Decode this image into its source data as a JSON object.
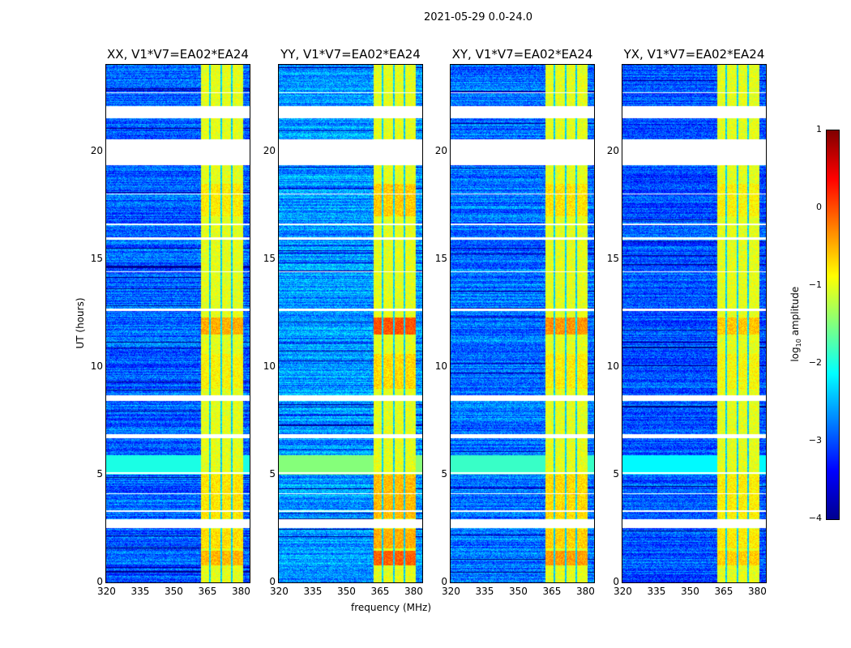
{
  "chart_data": {
    "type": "heatmap",
    "title": "2021-05-29 0.0-24.0",
    "xlabel": "frequency (MHz)",
    "ylabel": "UT (hours)",
    "xlim": [
      320,
      384
    ],
    "ylim": [
      0,
      24
    ],
    "xticks": [
      "320",
      "335",
      "350",
      "365",
      "380"
    ],
    "xtick_values": [
      320,
      335,
      350,
      365,
      380
    ],
    "yticks": [
      "0",
      "5",
      "10",
      "15",
      "20"
    ],
    "ytick_values": [
      0,
      5,
      10,
      15,
      20
    ],
    "panels": [
      {
        "title": "XX, V1*V7=EA02*EA24",
        "gain": 0.0
      },
      {
        "title": "YY, V1*V7=EA02*EA24",
        "gain": 0.35
      },
      {
        "title": "XY, V1*V7=EA02*EA24",
        "gain": 0.1
      },
      {
        "title": "YX, V1*V7=EA02*EA24",
        "gain": -0.1
      }
    ],
    "colorbar": {
      "label": "log10 amplitude",
      "label_main": "log",
      "label_sub": "10",
      "label_rest": " amplitude",
      "range": [
        -4,
        1
      ],
      "ticks": [
        "1",
        "0",
        "−1",
        "−2",
        "−3",
        "−4"
      ],
      "tick_values": [
        1,
        0,
        -1,
        -2,
        -3,
        -4
      ],
      "colormap": "jet"
    },
    "background_level": -2.9,
    "rfi_band_mhz": [
      362,
      381
    ],
    "rfi_band_level": -1.0,
    "band_gaps_mhz": [
      366,
      371,
      376
    ],
    "hot_periods_hours": [
      [
        0.8,
        1.5,
        0.2
      ],
      [
        1.6,
        2.5,
        -0.3
      ],
      [
        3.0,
        5.0,
        -0.4
      ],
      [
        11.5,
        12.3,
        0.3
      ],
      [
        9.0,
        10.6,
        -0.6
      ],
      [
        17.0,
        18.5,
        -0.5
      ]
    ],
    "flagged_hours": [
      [
        2.55,
        2.95
      ],
      [
        6.7,
        6.9
      ],
      [
        8.45,
        8.7
      ],
      [
        19.35,
        20.55
      ],
      [
        21.55,
        22.1
      ],
      [
        5.05,
        5.12
      ],
      [
        4.1,
        4.15
      ],
      [
        3.3,
        3.35
      ],
      [
        15.9,
        16.0
      ],
      [
        14.4,
        14.45
      ],
      [
        12.6,
        12.7
      ],
      [
        22.7,
        22.75
      ],
      [
        18.0,
        18.05
      ],
      [
        16.6,
        16.65
      ]
    ]
  }
}
